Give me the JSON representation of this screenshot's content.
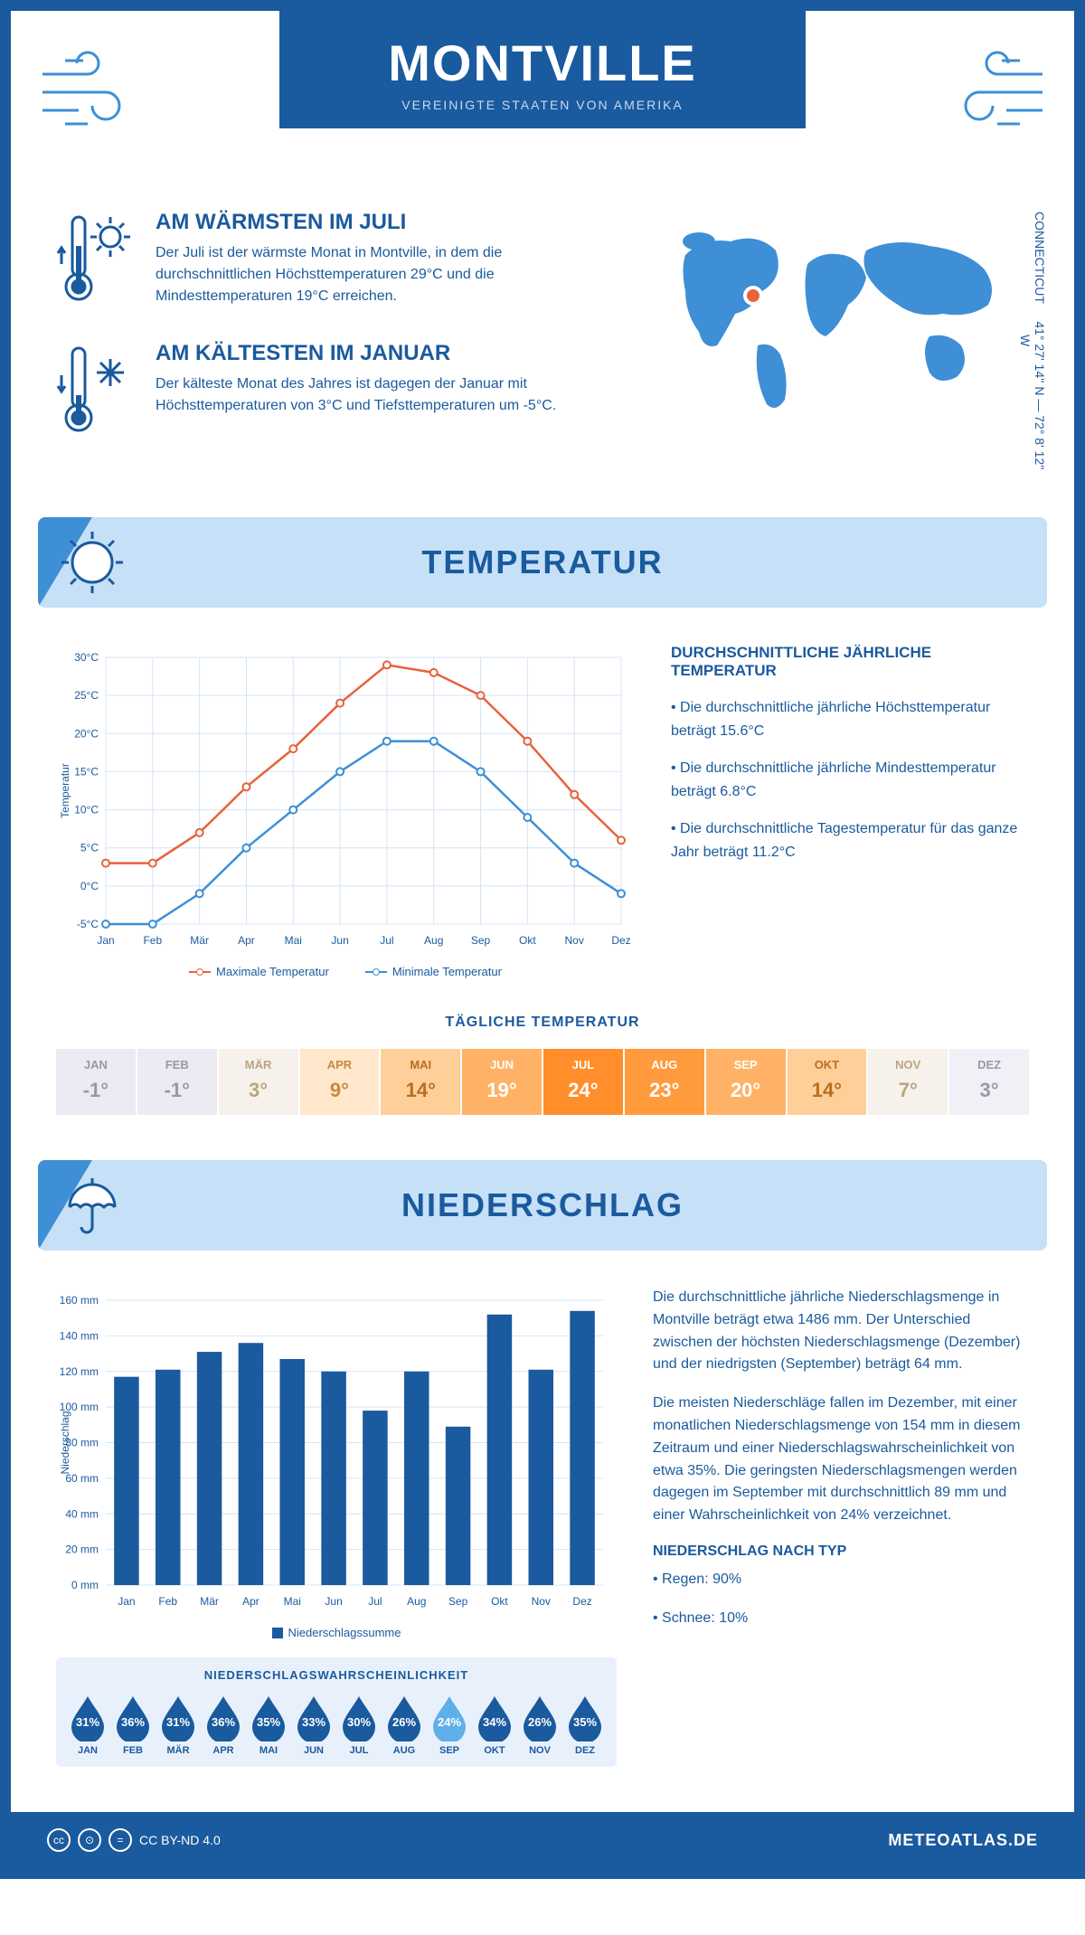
{
  "header": {
    "title": "MONTVILLE",
    "country": "VEREINIGTE STAATEN VON AMERIKA"
  },
  "coords": {
    "lat": "41° 27' 14'' N",
    "lon": "72° 8' 12'' W",
    "region": "CONNECTICUT"
  },
  "warmest": {
    "title": "AM WÄRMSTEN IM JULI",
    "body": "Der Juli ist der wärmste Monat in Montville, in dem die durchschnittlichen Höchsttemperaturen 29°C und die Mindesttemperaturen 19°C erreichen."
  },
  "coldest": {
    "title": "AM KÄLTESTEN IM JANUAR",
    "body": "Der kälteste Monat des Jahres ist dagegen der Januar mit Höchsttemperaturen von 3°C und Tiefsttemperaturen um -5°C."
  },
  "sections": {
    "temperature": "TEMPERATUR",
    "precipitation": "NIEDERSCHLAG"
  },
  "temp_chart": {
    "months": [
      "Jan",
      "Feb",
      "Mär",
      "Apr",
      "Mai",
      "Jun",
      "Jul",
      "Aug",
      "Sep",
      "Okt",
      "Nov",
      "Dez"
    ],
    "max_series": [
      3,
      3,
      7,
      13,
      18,
      24,
      29,
      28,
      25,
      19,
      12,
      6
    ],
    "min_series": [
      -5,
      -5,
      -1,
      5,
      10,
      15,
      19,
      19,
      15,
      9,
      3,
      -1
    ],
    "max_color": "#e8623c",
    "min_color": "#3e8fd6",
    "grid_color": "#d4e4f4",
    "ylabel": "Temperatur",
    "ymin": -5,
    "ymax": 30,
    "ystep": 5,
    "legend_max": "Maximale Temperatur",
    "legend_min": "Minimale Temperatur"
  },
  "temp_facts": {
    "title": "DURCHSCHNITTLICHE JÄHRLICHE TEMPERATUR",
    "items": [
      "• Die durchschnittliche jährliche Höchsttemperatur beträgt 15.6°C",
      "• Die durchschnittliche jährliche Mindesttemperatur beträgt 6.8°C",
      "• Die durchschnittliche Tagestemperatur für das ganze Jahr beträgt 11.2°C"
    ]
  },
  "daily_temp": {
    "title": "TÄGLICHE TEMPERATUR",
    "months": [
      "JAN",
      "FEB",
      "MÄR",
      "APR",
      "MAI",
      "JUN",
      "JUL",
      "AUG",
      "SEP",
      "OKT",
      "NOV",
      "DEZ"
    ],
    "values": [
      "-1°",
      "-1°",
      "3°",
      "9°",
      "14°",
      "19°",
      "24°",
      "23°",
      "20°",
      "14°",
      "7°",
      "3°"
    ],
    "colors": [
      "#eceaf2",
      "#eceaf2",
      "#f7f1eb",
      "#ffe7cc",
      "#ffcf99",
      "#ffb266",
      "#ff8e2b",
      "#ff9a3d",
      "#ffb266",
      "#ffcf99",
      "#f7f1eb",
      "#f2f0f7"
    ],
    "text_colors": [
      "#9a97ab",
      "#9a97ab",
      "#b9a57f",
      "#c78a3e",
      "#b86f1f",
      "#ffffff",
      "#ffffff",
      "#ffffff",
      "#ffffff",
      "#b86f1f",
      "#b9a57f",
      "#9a97ab"
    ]
  },
  "precip_chart": {
    "months": [
      "Jan",
      "Feb",
      "Mär",
      "Apr",
      "Mai",
      "Jun",
      "Jul",
      "Aug",
      "Sep",
      "Okt",
      "Nov",
      "Dez"
    ],
    "values": [
      117,
      121,
      131,
      136,
      127,
      120,
      98,
      120,
      89,
      152,
      121,
      154
    ],
    "ylabel": "Niederschlag",
    "ymax": 160,
    "ystep": 20,
    "bar_color": "#1a5a9e",
    "grid_color": "#d4e4f4",
    "legend": "Niederschlagssumme"
  },
  "precip_text": {
    "p1": "Die durchschnittliche jährliche Niederschlagsmenge in Montville beträgt etwa 1486 mm. Der Unterschied zwischen der höchsten Niederschlagsmenge (Dezember) und der niedrigsten (September) beträgt 64 mm.",
    "p2": "Die meisten Niederschläge fallen im Dezember, mit einer monatlichen Niederschlagsmenge von 154 mm in diesem Zeitraum und einer Niederschlagswahrscheinlichkeit von etwa 35%. Die geringsten Niederschlagsmengen werden dagegen im September mit durchschnittlich 89 mm und einer Wahrscheinlichkeit von 24% verzeichnet.",
    "type_title": "NIEDERSCHLAG NACH TYP",
    "type_items": [
      "• Regen: 90%",
      "• Schnee: 10%"
    ]
  },
  "precip_prob": {
    "title": "NIEDERSCHLAGSWAHRSCHEINLICHKEIT",
    "months": [
      "JAN",
      "FEB",
      "MÄR",
      "APR",
      "MAI",
      "JUN",
      "JUL",
      "AUG",
      "SEP",
      "OKT",
      "NOV",
      "DEZ"
    ],
    "values": [
      "31%",
      "36%",
      "31%",
      "36%",
      "35%",
      "33%",
      "30%",
      "26%",
      "24%",
      "34%",
      "26%",
      "35%"
    ],
    "min_index": 8,
    "dark_color": "#1a5a9e",
    "light_color": "#5fb0ea"
  },
  "footer": {
    "license": "CC BY-ND 4.0",
    "site": "METEOATLAS.DE"
  }
}
